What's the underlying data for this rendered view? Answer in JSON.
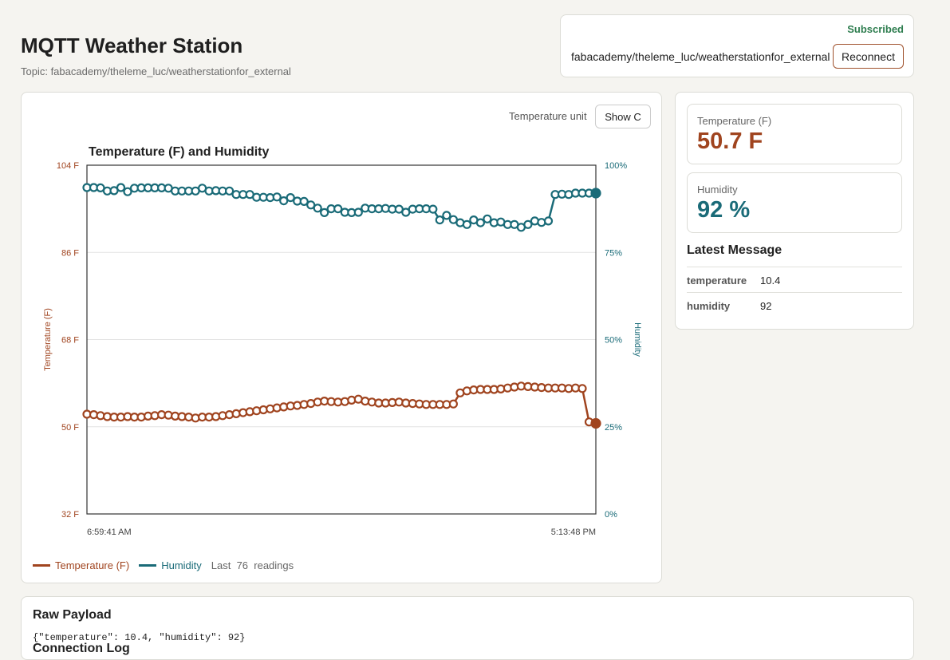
{
  "header": {
    "title": "MQTT Weather Station",
    "topic_line": "Topic: fabacademy/theleme_luc/weatherstationfor_external"
  },
  "subscription": {
    "status": "Subscribed",
    "topic": "fabacademy/theleme_luc/weatherstationfor_external",
    "reconnect_label": "Reconnect"
  },
  "controls": {
    "unit_label": "Temperature unit",
    "toggle_label": "Show C"
  },
  "chart_data": {
    "type": "line",
    "title": "Temperature (F) and Humidity",
    "xlabel": "",
    "x_ticks": [
      "6:59:41 AM",
      "5:13:48 PM"
    ],
    "y_left": {
      "label": "Temperature (F)",
      "ticks": [
        "104 F",
        "86 F",
        "68 F",
        "50 F",
        "32 F"
      ],
      "range": [
        32,
        104
      ]
    },
    "y_right": {
      "label": "Humidity",
      "ticks": [
        "100%",
        "75%",
        "50%",
        "25%",
        "0%"
      ],
      "range": [
        0,
        100
      ]
    },
    "grid": true,
    "colors": {
      "temperature": "#a0441f",
      "humidity": "#1a6b78"
    },
    "series": [
      {
        "name": "Temperature (F)",
        "axis": "left",
        "values": [
          52.6,
          52.5,
          52.3,
          52.1,
          52.0,
          52.0,
          52.1,
          52.0,
          52.0,
          52.2,
          52.3,
          52.5,
          52.4,
          52.2,
          52.1,
          52.0,
          51.8,
          52.0,
          52.0,
          52.1,
          52.3,
          52.5,
          52.7,
          52.9,
          53.1,
          53.3,
          53.5,
          53.7,
          53.9,
          54.1,
          54.3,
          54.4,
          54.6,
          54.8,
          55.1,
          55.3,
          55.2,
          55.1,
          55.2,
          55.5,
          55.7,
          55.3,
          55.1,
          54.9,
          54.9,
          55.0,
          55.1,
          54.9,
          54.8,
          54.7,
          54.6,
          54.6,
          54.6,
          54.6,
          54.7,
          57.0,
          57.4,
          57.6,
          57.7,
          57.7,
          57.7,
          57.8,
          58.0,
          58.2,
          58.4,
          58.3,
          58.2,
          58.1,
          58.0,
          58.0,
          58.0,
          57.9,
          58.0,
          57.9,
          51.0,
          50.7
        ]
      },
      {
        "name": "Humidity",
        "axis": "right",
        "values": [
          93.6,
          93.6,
          93.5,
          92.6,
          92.7,
          93.6,
          92.4,
          93.4,
          93.5,
          93.5,
          93.5,
          93.5,
          93.4,
          92.6,
          92.6,
          92.6,
          92.6,
          93.4,
          92.6,
          92.7,
          92.6,
          92.6,
          91.6,
          91.6,
          91.6,
          90.8,
          90.8,
          90.7,
          90.9,
          89.8,
          90.7,
          89.7,
          89.6,
          88.6,
          87.7,
          86.4,
          87.5,
          87.5,
          86.5,
          86.4,
          86.5,
          87.7,
          87.5,
          87.5,
          87.6,
          87.4,
          87.4,
          86.5,
          87.4,
          87.5,
          87.5,
          87.4,
          84.3,
          85.6,
          84.4,
          83.5,
          83.0,
          84.3,
          83.5,
          84.6,
          83.5,
          83.7,
          83.0,
          83.0,
          82.2,
          83.0,
          84.0,
          83.6,
          84.0,
          91.6,
          91.7,
          91.6,
          92.0,
          92.0,
          92.0,
          92.0
        ]
      }
    ]
  },
  "legend": {
    "temperature": "Temperature (F)",
    "humidity": "Humidity",
    "count_text": "Last  76  readings"
  },
  "metrics": {
    "temp_label": "Temperature (F)",
    "temp_value": "50.7 F",
    "humidity_label": "Humidity",
    "humidity_value": "92 %"
  },
  "latest": {
    "title": "Latest Message",
    "rows": [
      {
        "key": "temperature",
        "value": "10.4"
      },
      {
        "key": "humidity",
        "value": "92"
      }
    ]
  },
  "raw": {
    "title": "Raw Payload",
    "payload": "{\"temperature\": 10.4, \"humidity\": 92}",
    "connection_title": "Connection Log"
  }
}
